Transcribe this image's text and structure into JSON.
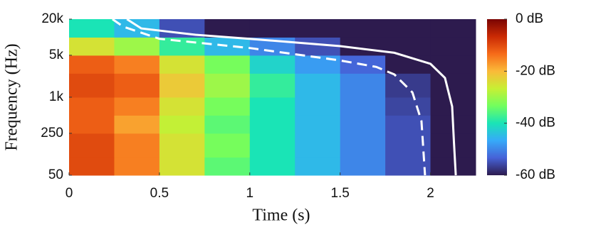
{
  "chart_data": {
    "type": "heatmap",
    "xlabel": "Time (s)",
    "ylabel": "Frequency (Hz)",
    "xlim": [
      0,
      2.25
    ],
    "xticks": [
      0,
      0.5,
      1,
      1.5,
      2
    ],
    "ylim": [
      50,
      20000
    ],
    "ylog": true,
    "yticks": [
      50,
      250,
      {
        "value": 1000,
        "label": "1k"
      },
      {
        "value": 5000,
        "label": "5k"
      },
      {
        "value": 20000,
        "label": "20k"
      }
    ],
    "x_edges": [
      0,
      0.25,
      0.5,
      0.75,
      1,
      1.25,
      1.5,
      1.75,
      2,
      2.25
    ],
    "y_edges": [
      50,
      100,
      250,
      500,
      1000,
      2500,
      5000,
      10000,
      20000
    ],
    "z": [
      [
        -10,
        -15,
        -25,
        -35,
        -40,
        -45,
        -50,
        -55,
        -60
      ],
      [
        -10,
        -15,
        -25,
        -33,
        -40,
        -45,
        -50,
        -55,
        -60
      ],
      [
        -12,
        -18,
        -27,
        -35,
        -40,
        -45,
        -50,
        -55,
        -60
      ],
      [
        -12,
        -15,
        -25,
        -33,
        -40,
        -45,
        -50,
        -56,
        -60
      ],
      [
        -10,
        -12,
        -22,
        -30,
        -38,
        -45,
        -50,
        -57,
        -60
      ],
      [
        -12,
        -15,
        -25,
        -33,
        -42,
        -48,
        -53,
        -60,
        -60
      ],
      [
        -25,
        -30,
        -38,
        -45,
        -50,
        -55,
        -60,
        -60,
        -60
      ],
      [
        -40,
        -45,
        -55,
        -60,
        -60,
        -60,
        -60,
        -60,
        -60
      ]
    ],
    "clim": [
      -60,
      0
    ],
    "cticks": [
      {
        "value": 0,
        "label": "0 dB"
      },
      {
        "value": -20,
        "label": "-20 dB"
      },
      {
        "value": -40,
        "label": "-40 dB"
      },
      {
        "value": -60,
        "label": "-60 dB"
      }
    ],
    "colormap": [
      "#2d1b4e",
      "#4662d7",
      "#36aaf9",
      "#1ae4b6",
      "#72fe5e",
      "#c7ef34",
      "#faba39",
      "#f66b19",
      "#ca2a04",
      "#7a0403"
    ],
    "series": [
      {
        "color": "#ffffff",
        "dash": false,
        "x": [
          0.32,
          0.4,
          0.7,
          1.0,
          1.5,
          1.8,
          2.0,
          2.08,
          2.12,
          2.13,
          2.14
        ],
        "values": [
          20000,
          14000,
          11000,
          9400,
          7100,
          5500,
          3600,
          2100,
          700,
          180,
          50
        ]
      },
      {
        "color": "#ffffff",
        "dash": true,
        "x": [
          0.24,
          0.3,
          0.5,
          1.0,
          1.5,
          1.7,
          1.8,
          1.9,
          1.95,
          1.97
        ],
        "values": [
          20000,
          15000,
          9400,
          6600,
          4100,
          3200,
          2400,
          1200,
          400,
          50
        ]
      }
    ]
  }
}
